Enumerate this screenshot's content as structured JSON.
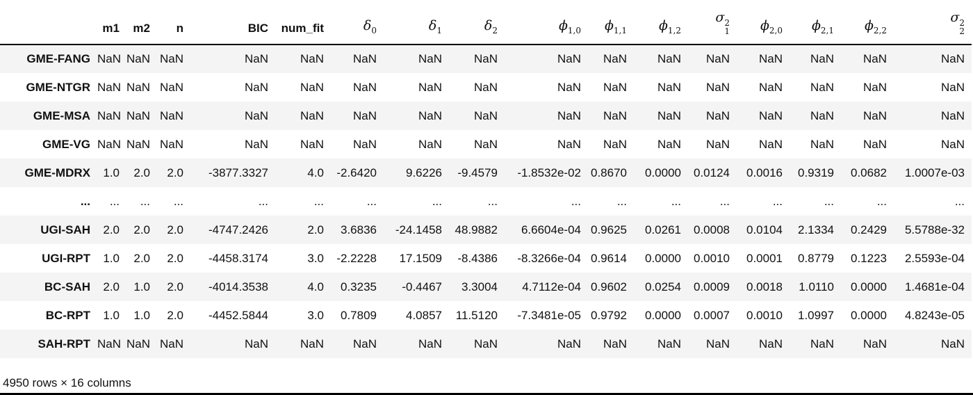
{
  "colors": {
    "stripe": "#f4f4f4",
    "ink": "#111111",
    "rule": "#000000"
  },
  "table": {
    "index_header": "",
    "columns": [
      {
        "kind": "text",
        "label": "m1"
      },
      {
        "kind": "text",
        "label": "m2"
      },
      {
        "kind": "text",
        "label": "n"
      },
      {
        "kind": "text",
        "label": "BIC"
      },
      {
        "kind": "text",
        "label": "num_fit"
      },
      {
        "kind": "math",
        "base": "δ",
        "sub": "0"
      },
      {
        "kind": "math",
        "base": "δ",
        "sub": "1"
      },
      {
        "kind": "math",
        "base": "δ",
        "sub": "2"
      },
      {
        "kind": "math",
        "base": "ϕ",
        "sub": "1,0"
      },
      {
        "kind": "math",
        "base": "ϕ",
        "sub": "1,1"
      },
      {
        "kind": "math",
        "base": "ϕ",
        "sub": "1,2"
      },
      {
        "kind": "math",
        "base": "σ",
        "sub": "1",
        "sup": "2"
      },
      {
        "kind": "math",
        "base": "ϕ",
        "sub": "2,0"
      },
      {
        "kind": "math",
        "base": "ϕ",
        "sub": "2,1"
      },
      {
        "kind": "math",
        "base": "ϕ",
        "sub": "2,2"
      },
      {
        "kind": "math",
        "base": "σ",
        "sub": "2",
        "sup": "2"
      }
    ],
    "rows": [
      {
        "index": "GME-FANG",
        "values": [
          "NaN",
          "NaN",
          "NaN",
          "NaN",
          "NaN",
          "NaN",
          "NaN",
          "NaN",
          "NaN",
          "NaN",
          "NaN",
          "NaN",
          "NaN",
          "NaN",
          "NaN",
          "NaN"
        ]
      },
      {
        "index": "GME-NTGR",
        "values": [
          "NaN",
          "NaN",
          "NaN",
          "NaN",
          "NaN",
          "NaN",
          "NaN",
          "NaN",
          "NaN",
          "NaN",
          "NaN",
          "NaN",
          "NaN",
          "NaN",
          "NaN",
          "NaN"
        ]
      },
      {
        "index": "GME-MSA",
        "values": [
          "NaN",
          "NaN",
          "NaN",
          "NaN",
          "NaN",
          "NaN",
          "NaN",
          "NaN",
          "NaN",
          "NaN",
          "NaN",
          "NaN",
          "NaN",
          "NaN",
          "NaN",
          "NaN"
        ]
      },
      {
        "index": "GME-VG",
        "values": [
          "NaN",
          "NaN",
          "NaN",
          "NaN",
          "NaN",
          "NaN",
          "NaN",
          "NaN",
          "NaN",
          "NaN",
          "NaN",
          "NaN",
          "NaN",
          "NaN",
          "NaN",
          "NaN"
        ]
      },
      {
        "index": "GME-MDRX",
        "values": [
          "1.0",
          "2.0",
          "2.0",
          "-3877.3327",
          "4.0",
          "-2.6420",
          "9.6226",
          "-9.4579",
          "-1.8532e-02",
          "0.8670",
          "0.0000",
          "0.0124",
          "0.0016",
          "0.9319",
          "0.0682",
          "1.0007e-03"
        ]
      },
      {
        "index": "...",
        "values": [
          "...",
          "...",
          "...",
          "...",
          "...",
          "...",
          "...",
          "...",
          "...",
          "...",
          "...",
          "...",
          "...",
          "...",
          "...",
          "..."
        ]
      },
      {
        "index": "UGI-SAH",
        "values": [
          "2.0",
          "2.0",
          "2.0",
          "-4747.2426",
          "2.0",
          "3.6836",
          "-24.1458",
          "48.9882",
          "6.6604e-04",
          "0.9625",
          "0.0261",
          "0.0008",
          "0.0104",
          "2.1334",
          "0.2429",
          "5.5788e-32"
        ]
      },
      {
        "index": "UGI-RPT",
        "values": [
          "1.0",
          "2.0",
          "2.0",
          "-4458.3174",
          "3.0",
          "-2.2228",
          "17.1509",
          "-8.4386",
          "-8.3266e-04",
          "0.9614",
          "0.0000",
          "0.0010",
          "0.0001",
          "0.8779",
          "0.1223",
          "2.5593e-04"
        ]
      },
      {
        "index": "BC-SAH",
        "values": [
          "2.0",
          "1.0",
          "2.0",
          "-4014.3538",
          "4.0",
          "0.3235",
          "-0.4467",
          "3.3004",
          "4.7112e-04",
          "0.9602",
          "0.0254",
          "0.0009",
          "0.0018",
          "1.0110",
          "0.0000",
          "1.4681e-04"
        ]
      },
      {
        "index": "BC-RPT",
        "values": [
          "1.0",
          "1.0",
          "2.0",
          "-4452.5844",
          "3.0",
          "0.7809",
          "4.0857",
          "11.5120",
          "-7.3481e-05",
          "0.9792",
          "0.0000",
          "0.0007",
          "0.0010",
          "1.0997",
          "0.0000",
          "4.8243e-05"
        ]
      },
      {
        "index": "SAH-RPT",
        "values": [
          "NaN",
          "NaN",
          "NaN",
          "NaN",
          "NaN",
          "NaN",
          "NaN",
          "NaN",
          "NaN",
          "NaN",
          "NaN",
          "NaN",
          "NaN",
          "NaN",
          "NaN",
          "NaN"
        ]
      }
    ],
    "footer": "4950 rows × 16 columns"
  }
}
